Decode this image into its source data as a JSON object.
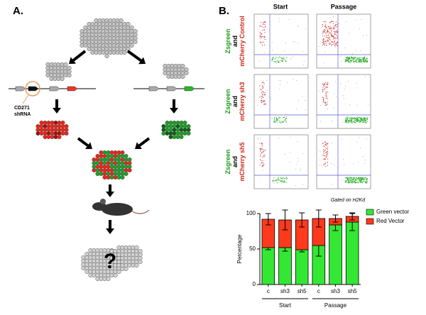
{
  "panel_a": {
    "label": "A.",
    "shrna_label_1": "CD271",
    "shrna_label_2": "shRNA",
    "outcome": "?"
  },
  "flow": {
    "label": "B.",
    "columns": [
      "Start",
      "Passage"
    ],
    "rows": [
      {
        "line1": "Zsgreen",
        "line2": "and",
        "line3": "mCherry Control"
      },
      {
        "line1": "Zsgreen",
        "line2": "and",
        "line3": "mCherry sh3"
      },
      {
        "line1": "Zsgreen",
        "line2": "and",
        "line3": "mCherry sh5"
      }
    ],
    "gate_note": "Gated on H2Kd"
  },
  "chart_data": {
    "type": "stacked_bar",
    "y_label": "Percentage",
    "categories": [
      "c",
      "sh3",
      "sh5",
      "c",
      "sh3",
      "sh5"
    ],
    "groups": [
      "Start",
      "Passage"
    ],
    "series": [
      {
        "name": "Green vector",
        "color": "#33e833",
        "values": [
          52,
          52,
          49,
          55,
          84,
          88
        ],
        "errors": [
          3,
          5,
          3,
          15,
          8,
          12
        ]
      },
      {
        "name": "Red Vector",
        "color": "#ff3a1c",
        "values": [
          40,
          39,
          42,
          38,
          9,
          8
        ],
        "errors": [
          8,
          14,
          10,
          12,
          5,
          5
        ]
      }
    ],
    "ylim": [
      0,
      100
    ],
    "yticks": [
      0,
      50,
      100
    ],
    "legend": "right"
  }
}
